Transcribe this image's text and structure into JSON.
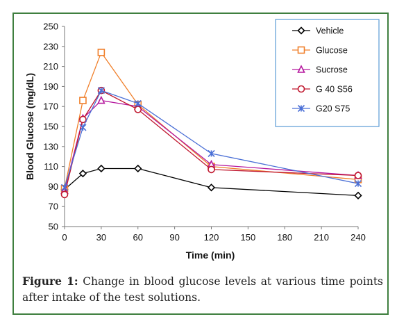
{
  "chart_data": {
    "type": "line",
    "xlabel": "Time (min)",
    "ylabel": "Blood Glucose (mg/dL)",
    "xlim": [
      0,
      240
    ],
    "ylim": [
      50,
      250
    ],
    "xticks": [
      0,
      30,
      60,
      90,
      120,
      150,
      180,
      210,
      240
    ],
    "yticks": [
      50,
      70,
      90,
      110,
      130,
      150,
      170,
      190,
      210,
      230,
      250
    ],
    "legend_position": "top-right",
    "series": [
      {
        "name": "Vehicle",
        "color": "#000000",
        "marker": "diamond",
        "x": [
          0,
          15,
          30,
          60,
          120,
          240
        ],
        "values": [
          87,
          103,
          108,
          108,
          89,
          81
        ]
      },
      {
        "name": "Glucose",
        "color": "#f07f2a",
        "marker": "square",
        "x": [
          0,
          15,
          30,
          60,
          120,
          240
        ],
        "values": [
          88,
          176,
          224,
          172,
          110,
          97
        ]
      },
      {
        "name": "Sucrose",
        "color": "#b5179e",
        "marker": "triangle",
        "x": [
          0,
          15,
          30,
          60,
          120,
          240
        ],
        "values": [
          86,
          158,
          176,
          170,
          112,
          101
        ]
      },
      {
        "name": "G 40 S56",
        "color": "#c0172e",
        "marker": "circle",
        "x": [
          0,
          15,
          30,
          60,
          120,
          240
        ],
        "values": [
          82,
          157,
          186,
          167,
          107,
          101
        ]
      },
      {
        "name": "G20 S75",
        "color": "#4a6fd6",
        "marker": "asterisk",
        "x": [
          0,
          15,
          30,
          60,
          120,
          240
        ],
        "values": [
          89,
          149,
          186,
          173,
          123,
          93
        ]
      }
    ]
  },
  "caption": {
    "label": "Figure 1:",
    "text": " Change in blood glucose levels at various time points after intake of the test solutions."
  }
}
